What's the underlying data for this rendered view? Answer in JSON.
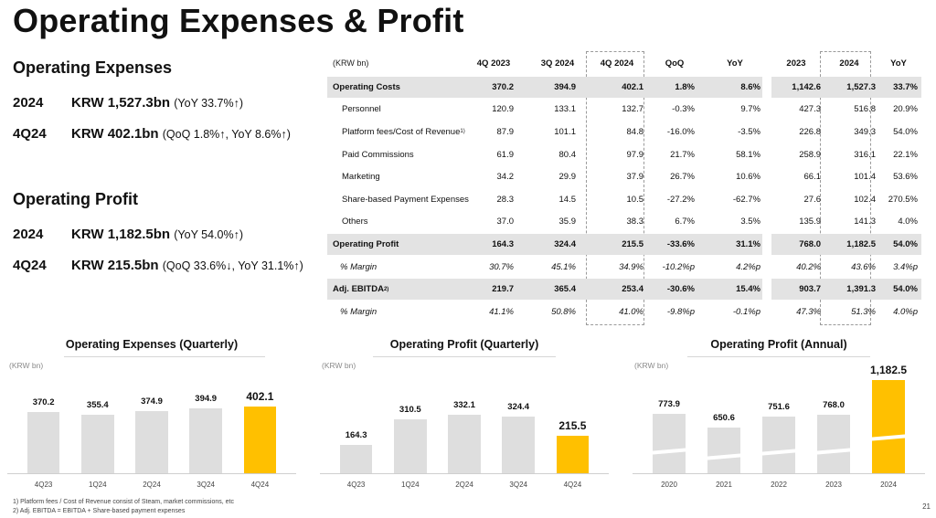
{
  "title": "Operating Expenses & Profit",
  "opex": {
    "heading": "Operating Expenses",
    "lines": [
      {
        "period": "2024",
        "value": "KRW 1,527.3bn",
        "change": "(YoY 33.7%↑)"
      },
      {
        "period": "4Q24",
        "value": "KRW 402.1bn",
        "change": "(QoQ 1.8%↑, YoY 8.6%↑)"
      }
    ]
  },
  "op_profit": {
    "heading": "Operating Profit",
    "lines": [
      {
        "period": "2024",
        "value": "KRW 1,182.5bn",
        "change": "(YoY 54.0%↑)"
      },
      {
        "period": "4Q24",
        "value": "KRW 215.5bn",
        "change": "(QoQ 33.6%↓, YoY 31.1%↑)"
      }
    ]
  },
  "table": {
    "unit": "(KRW bn)",
    "columns": [
      "4Q 2023",
      "3Q 2024",
      "4Q 2024",
      "QoQ",
      "YoY",
      "2023",
      "2024",
      "YoY"
    ],
    "rows": [
      {
        "label": "Operating Costs",
        "style": "bold",
        "values": [
          "370.2",
          "394.9",
          "402.1",
          "1.8%",
          "8.6%",
          "1,142.6",
          "1,527.3",
          "33.7%"
        ]
      },
      {
        "label": "Personnel",
        "style": "sub",
        "values": [
          "120.9",
          "133.1",
          "132.7",
          "-0.3%",
          "9.7%",
          "427.3",
          "516.8",
          "20.9%"
        ]
      },
      {
        "label": "Platform fees/Cost of Revenue",
        "sup": "1)",
        "style": "sub",
        "values": [
          "87.9",
          "101.1",
          "84.8",
          "-16.0%",
          "-3.5%",
          "226.8",
          "349.3",
          "54.0%"
        ]
      },
      {
        "label": "Paid Commissions",
        "style": "sub",
        "values": [
          "61.9",
          "80.4",
          "97.9",
          "21.7%",
          "58.1%",
          "258.9",
          "316.1",
          "22.1%"
        ]
      },
      {
        "label": "Marketing",
        "style": "sub",
        "values": [
          "34.2",
          "29.9",
          "37.9",
          "26.7%",
          "10.6%",
          "66.1",
          "101.4",
          "53.6%"
        ]
      },
      {
        "label": "Share-based Payment Expenses",
        "style": "sub",
        "values": [
          "28.3",
          "14.5",
          "10.5",
          "-27.2%",
          "-62.7%",
          "27.6",
          "102.4",
          "270.5%"
        ]
      },
      {
        "label": "Others",
        "style": "sub",
        "values": [
          "37.0",
          "35.9",
          "38.3",
          "6.7%",
          "3.5%",
          "135.9",
          "141.3",
          "4.0%"
        ]
      },
      {
        "label": "Operating Profit",
        "style": "bold",
        "values": [
          "164.3",
          "324.4",
          "215.5",
          "-33.6%",
          "31.1%",
          "768.0",
          "1,182.5",
          "54.0%"
        ]
      },
      {
        "label": "% Margin",
        "style": "ital",
        "values": [
          "30.7%",
          "45.1%",
          "34.9%",
          "-10.2%p",
          "4.2%p",
          "40.2%",
          "43.6%",
          "3.4%p"
        ]
      },
      {
        "label": "Adj. EBITDA",
        "sup": "2)",
        "style": "bold",
        "values": [
          "219.7",
          "365.4",
          "253.4",
          "-30.6%",
          "15.4%",
          "903.7",
          "1,391.3",
          "54.0%"
        ]
      },
      {
        "label": "% Margin",
        "style": "ital",
        "values": [
          "41.1%",
          "50.8%",
          "41.0%",
          "-9.8%p",
          "-0.1%p",
          "47.3%",
          "51.3%",
          "4.0%p"
        ]
      }
    ]
  },
  "charts": [
    {
      "title": "Operating Expenses (Quarterly)",
      "unit": "(KRW bn)",
      "categories": [
        "4Q23",
        "1Q24",
        "2Q24",
        "3Q24",
        "4Q24"
      ],
      "values": [
        370.2,
        355.4,
        374.9,
        394.9,
        402.1
      ],
      "labels": [
        "370.2",
        "355.4",
        "374.9",
        "394.9",
        "402.1"
      ],
      "highlight": 4,
      "broken_axis": false
    },
    {
      "title": "Operating Profit (Quarterly)",
      "unit": "(KRW bn)",
      "categories": [
        "4Q23",
        "1Q24",
        "2Q24",
        "3Q24",
        "4Q24"
      ],
      "values": [
        164.3,
        310.5,
        332.1,
        324.4,
        215.5
      ],
      "labels": [
        "164.3",
        "310.5",
        "332.1",
        "324.4",
        "215.5"
      ],
      "highlight": 4,
      "broken_axis": false
    },
    {
      "title": "Operating Profit (Annual)",
      "unit": "(KRW bn)",
      "categories": [
        "2020",
        "2021",
        "2022",
        "2023",
        "2024"
      ],
      "values": [
        773.9,
        650.6,
        751.6,
        768.0,
        1182.5
      ],
      "labels": [
        "773.9",
        "650.6",
        "751.6",
        "768.0",
        "1,182.5"
      ],
      "highlight": 4,
      "broken_axis": true
    }
  ],
  "chart_data": [
    {
      "type": "bar",
      "title": "Operating Expenses (Quarterly)",
      "ylabel": "(KRW bn)",
      "categories": [
        "4Q23",
        "1Q24",
        "2Q24",
        "3Q24",
        "4Q24"
      ],
      "values": [
        370.2,
        355.4,
        374.9,
        394.9,
        402.1
      ]
    },
    {
      "type": "bar",
      "title": "Operating Profit (Quarterly)",
      "ylabel": "(KRW bn)",
      "categories": [
        "4Q23",
        "1Q24",
        "2Q24",
        "3Q24",
        "4Q24"
      ],
      "values": [
        164.3,
        310.5,
        332.1,
        324.4,
        215.5
      ]
    },
    {
      "type": "bar",
      "title": "Operating Profit (Annual)",
      "ylabel": "(KRW bn)",
      "categories": [
        "2020",
        "2021",
        "2022",
        "2023",
        "2024"
      ],
      "values": [
        773.9,
        650.6,
        751.6,
        768.0,
        1182.5
      ]
    }
  ],
  "colors": {
    "highlight": "#ffc000",
    "bar": "#dedede",
    "band": "#e3e3e3"
  },
  "footnotes": [
    "1) Platform fees / Cost of Revenue consist of Steam, market commissions, etc",
    "2) Adj. EBITDA = EBITDA + Share-based payment expenses"
  ],
  "page_number": "21"
}
